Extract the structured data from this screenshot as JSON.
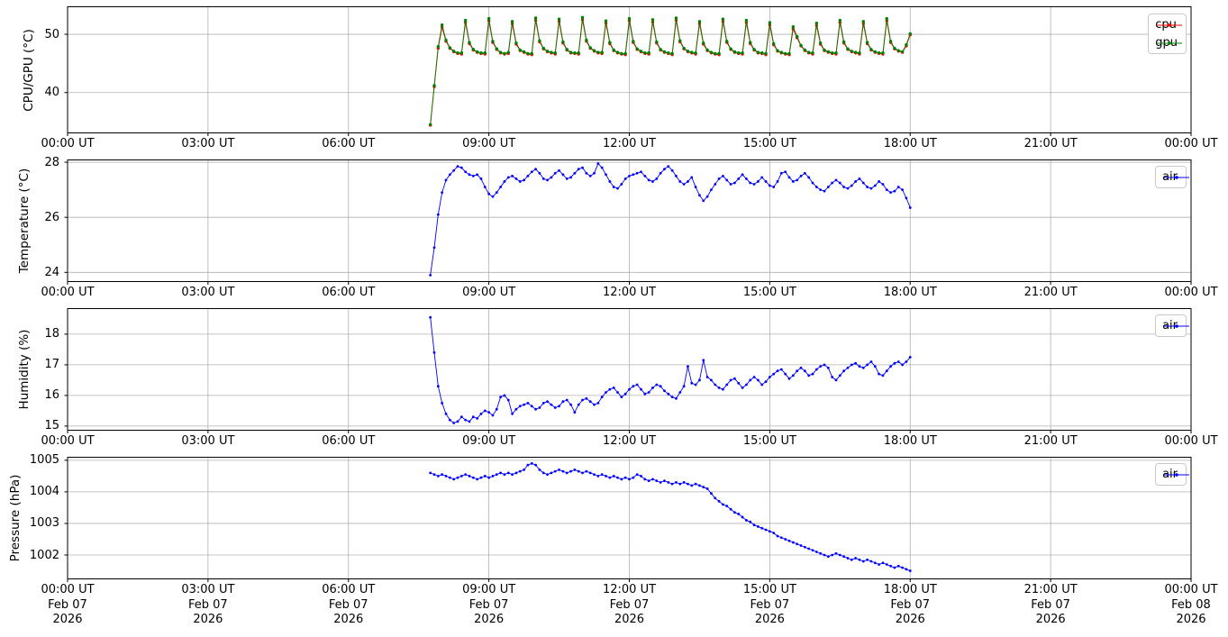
{
  "figure": {
    "background": "#ffffff"
  },
  "colors": {
    "grid": "#b0b0b0",
    "axis": "#000000",
    "cpu": "#ff0000",
    "gpu": "#008000",
    "air": "#0000ff"
  },
  "x_axis": {
    "ticks_hours": [
      0,
      3,
      6,
      9,
      12,
      15,
      18,
      21,
      24
    ],
    "tick_labels": [
      "00:00 UT",
      "03:00 UT",
      "06:00 UT",
      "09:00 UT",
      "12:00 UT",
      "15:00 UT",
      "18:00 UT",
      "21:00 UT",
      "00:00 UT"
    ],
    "date_line1": [
      "Feb 07",
      "Feb 07",
      "Feb 07",
      "Feb 07",
      "Feb 07",
      "Feb 07",
      "Feb 07",
      "Feb 07",
      "Feb 08"
    ],
    "date_line2": [
      "2026",
      "2026",
      "2026",
      "2026",
      "2026",
      "2026",
      "2026",
      "2026",
      "2026"
    ]
  },
  "chart_data": [
    {
      "type": "line",
      "name": "cpu-gpu",
      "ylabel": "CPU/GPU (°C)",
      "ylim": [
        33.0,
        54.8
      ],
      "yticks": [
        40,
        50
      ],
      "ytick_labels": [
        "40",
        "50"
      ],
      "grid": true,
      "x_start_hour": 7.75,
      "x_step_minutes": 5,
      "legend": {
        "position": "upper right",
        "entries": [
          "cpu",
          "gpu"
        ]
      },
      "series": [
        {
          "name": "cpu",
          "color": "#ff0000",
          "values": [
            34.4,
            41.0,
            47.6,
            51.2,
            48.8,
            47.6,
            47.0,
            46.7,
            46.6,
            52.0,
            48.4,
            47.3,
            46.9,
            46.7,
            46.6,
            52.3,
            48.6,
            47.4,
            46.8,
            46.6,
            46.7,
            51.8,
            48.3,
            47.2,
            46.9,
            46.6,
            46.5,
            52.4,
            48.7,
            47.5,
            47.0,
            46.8,
            46.6,
            52.2,
            48.5,
            47.3,
            46.8,
            46.7,
            46.6,
            52.5,
            48.8,
            47.6,
            47.1,
            46.8,
            46.7,
            51.9,
            48.4,
            47.2,
            46.8,
            46.6,
            46.5,
            52.3,
            48.6,
            47.4,
            47.0,
            46.7,
            46.6,
            52.1,
            48.5,
            47.3,
            46.9,
            46.7,
            46.5,
            52.4,
            48.7,
            47.5,
            47.0,
            46.8,
            46.6,
            51.8,
            48.3,
            47.2,
            46.8,
            46.6,
            46.5,
            52.2,
            48.6,
            47.4,
            46.9,
            46.7,
            46.6,
            52.0,
            48.4,
            47.3,
            46.8,
            46.7,
            46.5,
            51.6,
            48.2,
            47.1,
            46.8,
            46.6,
            46.5,
            50.9,
            49.4,
            48.0,
            47.2,
            46.8,
            46.6,
            51.5,
            48.3,
            47.2,
            46.9,
            46.7,
            46.6,
            52.0,
            48.5,
            47.4,
            47.0,
            46.8,
            46.6,
            51.8,
            48.4,
            47.3,
            46.9,
            46.7,
            46.6,
            52.3,
            48.6,
            47.5,
            47.1,
            46.9,
            48.0,
            49.9
          ]
        },
        {
          "name": "gpu",
          "color": "#008000",
          "values": [
            34.5,
            41.2,
            47.9,
            51.6,
            49.0,
            47.7,
            47.1,
            46.8,
            46.8,
            52.4,
            48.6,
            47.4,
            47.0,
            46.8,
            46.8,
            52.7,
            48.8,
            47.5,
            46.9,
            46.7,
            46.9,
            52.2,
            48.5,
            47.3,
            47.0,
            46.7,
            46.7,
            52.8,
            48.9,
            47.6,
            47.1,
            46.9,
            46.8,
            52.6,
            48.7,
            47.4,
            46.9,
            46.8,
            46.8,
            52.9,
            49.0,
            47.7,
            47.2,
            46.9,
            46.9,
            52.3,
            48.6,
            47.3,
            46.9,
            46.7,
            46.7,
            52.7,
            48.8,
            47.5,
            47.1,
            46.8,
            46.8,
            52.5,
            48.7,
            47.4,
            47.0,
            46.8,
            46.7,
            52.8,
            48.9,
            47.6,
            47.1,
            46.9,
            46.8,
            52.2,
            48.5,
            47.3,
            46.9,
            46.7,
            46.7,
            52.6,
            48.8,
            47.5,
            47.0,
            46.8,
            46.8,
            52.4,
            48.6,
            47.4,
            46.9,
            46.8,
            46.7,
            52.0,
            48.4,
            47.2,
            46.9,
            46.7,
            46.7,
            51.3,
            49.6,
            48.1,
            47.3,
            46.9,
            46.8,
            51.9,
            48.5,
            47.3,
            47.0,
            46.8,
            46.8,
            52.4,
            48.7,
            47.5,
            47.1,
            46.9,
            46.8,
            52.2,
            48.6,
            47.4,
            47.0,
            46.8,
            46.8,
            52.7,
            48.8,
            47.6,
            47.2,
            47.0,
            48.2,
            50.1
          ]
        }
      ]
    },
    {
      "type": "line",
      "name": "temperature",
      "ylabel": "Temperature (°C)",
      "ylim": [
        23.65,
        28.1
      ],
      "yticks": [
        24,
        26,
        28
      ],
      "ytick_labels": [
        "24",
        "26",
        "28"
      ],
      "grid": true,
      "x_start_hour": 7.75,
      "x_step_minutes": 5,
      "legend": {
        "position": "upper right",
        "entries": [
          "air"
        ]
      },
      "series": [
        {
          "name": "air",
          "color": "#0000ff",
          "values": [
            23.9,
            24.9,
            26.1,
            26.9,
            27.35,
            27.55,
            27.7,
            27.85,
            27.8,
            27.65,
            27.55,
            27.5,
            27.55,
            27.4,
            27.1,
            26.85,
            26.75,
            26.9,
            27.1,
            27.3,
            27.45,
            27.5,
            27.4,
            27.3,
            27.35,
            27.5,
            27.65,
            27.75,
            27.6,
            27.4,
            27.35,
            27.45,
            27.6,
            27.7,
            27.55,
            27.4,
            27.45,
            27.6,
            27.75,
            27.8,
            27.6,
            27.5,
            27.6,
            27.95,
            27.8,
            27.55,
            27.3,
            27.1,
            27.05,
            27.2,
            27.4,
            27.5,
            27.55,
            27.6,
            27.65,
            27.5,
            27.35,
            27.3,
            27.4,
            27.6,
            27.75,
            27.85,
            27.7,
            27.5,
            27.3,
            27.2,
            27.3,
            27.45,
            27.1,
            26.8,
            26.6,
            26.75,
            27.0,
            27.2,
            27.4,
            27.5,
            27.35,
            27.2,
            27.25,
            27.4,
            27.55,
            27.4,
            27.25,
            27.2,
            27.3,
            27.45,
            27.3,
            27.15,
            27.1,
            27.3,
            27.6,
            27.65,
            27.45,
            27.3,
            27.35,
            27.5,
            27.6,
            27.45,
            27.25,
            27.1,
            27.0,
            26.95,
            27.1,
            27.25,
            27.35,
            27.25,
            27.1,
            27.05,
            27.15,
            27.3,
            27.4,
            27.25,
            27.1,
            27.05,
            27.15,
            27.3,
            27.2,
            27.0,
            26.9,
            26.95,
            27.1,
            27.0,
            26.7,
            26.35
          ]
        }
      ]
    },
    {
      "type": "line",
      "name": "humidity",
      "ylabel": "Humidity (%)",
      "ylim": [
        14.85,
        18.85
      ],
      "yticks": [
        15,
        16,
        17,
        18
      ],
      "ytick_labels": [
        "15",
        "16",
        "17",
        "18"
      ],
      "grid": true,
      "x_start_hour": 7.75,
      "x_step_minutes": 5,
      "legend": {
        "position": "upper right",
        "entries": [
          "air"
        ]
      },
      "series": [
        {
          "name": "air",
          "color": "#0000ff",
          "values": [
            18.55,
            17.4,
            16.3,
            15.75,
            15.4,
            15.2,
            15.1,
            15.15,
            15.3,
            15.2,
            15.15,
            15.3,
            15.25,
            15.4,
            15.5,
            15.45,
            15.35,
            15.55,
            15.95,
            16.0,
            15.85,
            15.4,
            15.55,
            15.65,
            15.7,
            15.75,
            15.65,
            15.55,
            15.6,
            15.75,
            15.8,
            15.7,
            15.6,
            15.65,
            15.8,
            15.85,
            15.7,
            15.45,
            15.7,
            15.85,
            15.9,
            15.8,
            15.7,
            15.75,
            15.95,
            16.1,
            16.2,
            16.25,
            16.1,
            15.95,
            16.05,
            16.2,
            16.3,
            16.35,
            16.2,
            16.05,
            16.1,
            16.25,
            16.35,
            16.3,
            16.15,
            16.05,
            15.95,
            15.9,
            16.1,
            16.3,
            16.95,
            16.4,
            16.35,
            16.5,
            17.15,
            16.6,
            16.5,
            16.35,
            16.25,
            16.2,
            16.35,
            16.5,
            16.55,
            16.4,
            16.25,
            16.35,
            16.5,
            16.6,
            16.5,
            16.35,
            16.45,
            16.6,
            16.7,
            16.8,
            16.85,
            16.7,
            16.55,
            16.65,
            16.8,
            16.9,
            16.8,
            16.65,
            16.7,
            16.85,
            16.95,
            17.0,
            16.9,
            16.6,
            16.5,
            16.65,
            16.8,
            16.9,
            17.0,
            17.05,
            16.95,
            16.9,
            17.0,
            17.1,
            16.95,
            16.7,
            16.65,
            16.8,
            16.95,
            17.05,
            17.1,
            17.0,
            17.1,
            17.25
          ]
        }
      ]
    },
    {
      "type": "line",
      "name": "pressure",
      "ylabel": "Pressure (hPa)",
      "ylim": [
        1001.23,
        1005.11
      ],
      "yticks": [
        1002,
        1003,
        1004,
        1005
      ],
      "ytick_labels": [
        "1002",
        "1003",
        "1004",
        "1005"
      ],
      "grid": true,
      "x_start_hour": 7.75,
      "x_step_minutes": 5,
      "legend": {
        "position": "upper right",
        "entries": [
          "air"
        ]
      },
      "series": [
        {
          "name": "air",
          "color": "#0000ff",
          "values": [
            1004.6,
            1004.55,
            1004.5,
            1004.55,
            1004.5,
            1004.45,
            1004.4,
            1004.45,
            1004.5,
            1004.55,
            1004.5,
            1004.45,
            1004.4,
            1004.45,
            1004.5,
            1004.45,
            1004.5,
            1004.55,
            1004.6,
            1004.55,
            1004.6,
            1004.55,
            1004.6,
            1004.65,
            1004.7,
            1004.85,
            1004.9,
            1004.85,
            1004.7,
            1004.6,
            1004.55,
            1004.6,
            1004.65,
            1004.7,
            1004.65,
            1004.6,
            1004.65,
            1004.7,
            1004.65,
            1004.6,
            1004.65,
            1004.6,
            1004.55,
            1004.5,
            1004.55,
            1004.5,
            1004.45,
            1004.5,
            1004.45,
            1004.4,
            1004.45,
            1004.4,
            1004.45,
            1004.55,
            1004.5,
            1004.4,
            1004.35,
            1004.4,
            1004.35,
            1004.3,
            1004.35,
            1004.3,
            1004.25,
            1004.3,
            1004.25,
            1004.3,
            1004.25,
            1004.2,
            1004.25,
            1004.2,
            1004.15,
            1004.1,
            1003.95,
            1003.8,
            1003.7,
            1003.6,
            1003.55,
            1003.45,
            1003.35,
            1003.3,
            1003.2,
            1003.1,
            1003.05,
            1002.95,
            1002.9,
            1002.85,
            1002.8,
            1002.75,
            1002.7,
            1002.6,
            1002.55,
            1002.5,
            1002.45,
            1002.4,
            1002.35,
            1002.3,
            1002.25,
            1002.2,
            1002.15,
            1002.1,
            1002.05,
            1002.0,
            1001.95,
            1002.0,
            1002.05,
            1002.0,
            1001.95,
            1001.9,
            1001.85,
            1001.9,
            1001.85,
            1001.8,
            1001.85,
            1001.8,
            1001.75,
            1001.7,
            1001.75,
            1001.7,
            1001.65,
            1001.6,
            1001.65,
            1001.6,
            1001.55,
            1001.5
          ]
        }
      ]
    }
  ]
}
